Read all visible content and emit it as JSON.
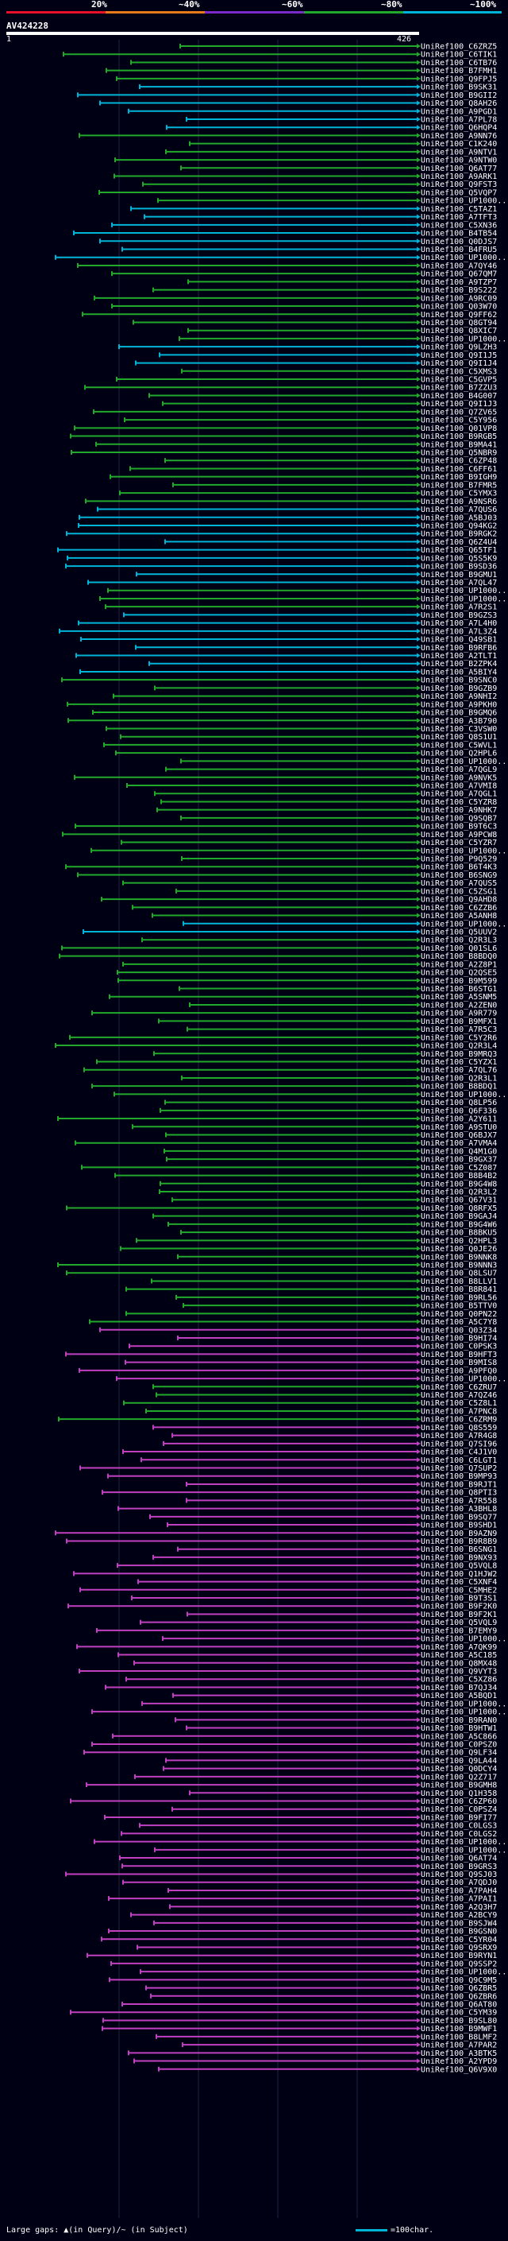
{
  "header": {
    "scale_labels": [
      "20%",
      "~40%",
      "~60%",
      "~80%",
      "~100%"
    ],
    "scale_colors": [
      "#e8102a",
      "#e87a1a",
      "#7a2ac8",
      "#22a82a",
      "#00b4d8"
    ],
    "sequence_id": "AV424228",
    "query_start": "1",
    "query_end": "426"
  },
  "legend": {
    "gaps_text": "Large gaps: ▲(in Query)/~ (in Subject)",
    "scale_text": "=100char."
  },
  "hits": [
    "UniRef100_C6ZRZ5",
    "UniRef100_C6TIK1",
    "UniRef100_C6TB76",
    "UniRef100_B7FMH1",
    "UniRef100_Q9FPJ5",
    "UniRef100_B9SK31",
    "UniRef100_B9GII2",
    "UniRef100_Q8AH26",
    "UniRef100_A9PGD1",
    "UniRef100_A7PL78",
    "UniRef100_Q6HQP4",
    "UniRef100_A9NN76",
    "UniRef100_C1K240",
    "UniRef100_A9NTV1",
    "UniRef100_A9NTW0",
    "UniRef100_Q6AT77",
    "UniRef100_A9ARK1",
    "UniRef100_Q9FST3",
    "UniRef100_Q5VQP7",
    "UniRef100_UP1000...",
    "UniRef100_C5TAZ1",
    "UniRef100_A7TFT3",
    "UniRef100_C5XN36",
    "UniRef100_B4TB54",
    "UniRef100_Q0DJS7",
    "UniRef100_B4FRU5",
    "UniRef100_UP1000...",
    "UniRef100_A7QY46",
    "UniRef100_Q67QM7",
    "UniRef100_A9TZP7",
    "UniRef100_B9S222",
    "UniRef100_A9RC09",
    "UniRef100_Q03W70",
    "UniRef100_Q9FF62",
    "UniRef100_Q8GT94",
    "UniRef100_Q8XIC7",
    "UniRef100_UP1000...",
    "UniRef100_Q9LZH3",
    "UniRef100_Q9I1J5",
    "UniRef100_Q9I1J4",
    "UniRef100_C5XMS3",
    "UniRef100_C5GVP5",
    "UniRef100_B7ZZU3",
    "UniRef100_B4G007",
    "UniRef100_Q9I1J3",
    "UniRef100_Q7ZV65",
    "UniRef100_C5Y956",
    "UniRef100_Q01VP8",
    "UniRef100_B9RGB5",
    "UniRef100_B9MA41",
    "UniRef100_Q5NBR9",
    "UniRef100_C6ZP48",
    "UniRef100_C6FF61",
    "UniRef100_B9IGH9",
    "UniRef100_B7FMR5",
    "UniRef100_C5YMX3",
    "UniRef100_A9NSR6",
    "UniRef100_A7QUS6",
    "UniRef100_A5BJ03",
    "UniRef100_Q94KG2",
    "UniRef100_B9RGK2",
    "UniRef100_Q6Z4U4",
    "UniRef100_Q65TF1",
    "UniRef100_Q5S5K9",
    "UniRef100_B9SD36",
    "UniRef100_B9GMU1",
    "UniRef100_A7QL47",
    "UniRef100_UP1000...",
    "UniRef100_UP1000...",
    "UniRef100_A7R2S1",
    "UniRef100_B9GZS3",
    "UniRef100_A7L4H0",
    "UniRef100_A7L3Z4",
    "UniRef100_Q49SB1",
    "UniRef100_B9RFB6",
    "UniRef100_A2TLT1",
    "UniRef100_B2ZPK4",
    "UniRef100_A5BIY4",
    "UniRef100_B9SNC0",
    "UniRef100_B9GZB9",
    "UniRef100_A9NHI2",
    "UniRef100_A9PKH0",
    "UniRef100_B9GMQ6",
    "UniRef100_A3B790",
    "UniRef100_C3VSW0",
    "UniRef100_Q8S1U1",
    "UniRef100_C5WVL1",
    "UniRef100_Q2HPL6",
    "UniRef100_UP1000...",
    "UniRef100_A7QGL9",
    "UniRef100_A9NVK5",
    "UniRef100_A7VMI8",
    "UniRef100_A7QGL1",
    "UniRef100_C5YZR8",
    "UniRef100_A9NHK7",
    "UniRef100_Q9SQB7",
    "UniRef100_B9T6C3",
    "UniRef100_A9PCW8",
    "UniRef100_C5YZR7",
    "UniRef100_UP1000...",
    "UniRef100_P9Q529",
    "UniRef100_B6T4K3",
    "UniRef100_B6SNG9",
    "UniRef100_A7QUS5",
    "UniRef100_C5ZSG1",
    "UniRef100_Q9AHD8",
    "UniRef100_C6ZZB6",
    "UniRef100_A5ANH8",
    "UniRef100_UP1000...",
    "UniRef100_Q5UUV2",
    "UniRef100_Q2R3L3",
    "UniRef100_Q01SL6",
    "UniRef100_B8BDQ0",
    "UniRef100_A2Z8P1",
    "UniRef100_Q2QSE5",
    "UniRef100_B9M599",
    "UniRef100_B6STG1",
    "UniRef100_A5SNM5",
    "UniRef100_A2ZEN0",
    "UniRef100_A9R779",
    "UniRef100_B9MFX1",
    "UniRef100_A7R5C3",
    "UniRef100_C5Y2R6",
    "UniRef100_Q2R3L4",
    "UniRef100_B9MRQ3",
    "UniRef100_C5YZX1",
    "UniRef100_A7QL76",
    "UniRef100_Q2R3L1",
    "UniRef100_B8BDQ1",
    "UniRef100_UP1000...",
    "UniRef100_Q8LP56",
    "UniRef100_Q6F336",
    "UniRef100_A2Y611",
    "UniRef100_A9STU0",
    "UniRef100_Q6BJX7",
    "UniRef100_A7VMA4",
    "UniRef100_Q4M1G0",
    "UniRef100_B9GX37",
    "UniRef100_C5Z087",
    "UniRef100_B8B4B2",
    "UniRef100_B9G4W8",
    "UniRef100_Q2R3L2",
    "UniRef100_Q67V31",
    "UniRef100_Q8RFX5",
    "UniRef100_B9GAJ4",
    "UniRef100_B9G4W6",
    "UniRef100_B8BKU5",
    "UniRef100_Q2HPL3",
    "UniRef100_Q0JE26",
    "UniRef100_B9NNK8",
    "UniRef100_B9NNN3",
    "UniRef100_Q8LSU7",
    "UniRef100_B8LLV1",
    "UniRef100_B8R841",
    "UniRef100_B9RL56",
    "UniRef100_B5TTV0",
    "UniRef100_Q0PN22",
    "UniRef100_A5C7Y8",
    "UniRef100_Q03Z34",
    "UniRef100_B9HI74",
    "UniRef100_C0PSK3",
    "UniRef100_B9HFT3",
    "UniRef100_B9MIS8",
    "UniRef100_A9PFQ0",
    "UniRef100_UP1000...",
    "UniRef100_C6ZRU7",
    "UniRef100_A7QZ46",
    "UniRef100_C5Z8L1",
    "UniRef100_A7PNC8",
    "UniRef100_C6ZRM9",
    "UniRef100_Q8S559",
    "UniRef100_A7R4G8",
    "UniRef100_Q7SI96",
    "UniRef100_C4J1V0",
    "UniRef100_C6LGT1",
    "UniRef100_Q7SUP2",
    "UniRef100_B9MP93",
    "UniRef100_B9RJT1",
    "UniRef100_Q8PTI3",
    "UniRef100_A7R558",
    "UniRef100_A3BHL8",
    "UniRef100_B9SQ77",
    "UniRef100_B9SHD1",
    "UniRef100_B9AZN9",
    "UniRef100_B9R8B9",
    "UniRef100_B6SNG1",
    "UniRef100_B9NX93",
    "UniRef100_Q5VQL8",
    "UniRef100_Q1HJW2",
    "UniRef100_C5XNF4",
    "UniRef100_C5MHE2",
    "UniRef100_B9T3S1",
    "UniRef100_B9F2K0",
    "UniRef100_B9F2K1",
    "UniRef100_Q5VQL9",
    "UniRef100_B7EMY9",
    "UniRef100_UP1000...",
    "UniRef100_A7QK99",
    "UniRef100_A5C185",
    "UniRef100_Q8MX48",
    "UniRef100_Q9VYT3",
    "UniRef100_C5XZ86",
    "UniRef100_B7QJ34",
    "UniRef100_A5BQD1",
    "UniRef100_UP1000...",
    "UniRef100_UP1000...",
    "UniRef100_B9RAN0",
    "UniRef100_B9HTW1",
    "UniRef100_A5C866",
    "UniRef100_C0PSZ0",
    "UniRef100_Q9LF34",
    "UniRef100_Q9LA44",
    "UniRef100_Q0DCY4",
    "UniRef100_Q2Z717",
    "UniRef100_B9GMH8",
    "UniRef100_Q1H358",
    "UniRef100_C6ZP60",
    "UniRef100_C0PSZ4",
    "UniRef100_B9FI77",
    "UniRef100_C0LGS3",
    "UniRef100_C0LGS2",
    "UniRef100_UP1000...",
    "UniRef100_UP1000...",
    "UniRef100_Q6AT74",
    "UniRef100_B9GRS3",
    "UniRef100_Q9SJ03",
    "UniRef100_A7QDJ0",
    "UniRef100_A7PAH4",
    "UniRef100_A7PAI1",
    "UniRef100_A2Q3H7",
    "UniRef100_A2BCY9",
    "UniRef100_B9SJW4",
    "UniRef100_B9GSN0",
    "UniRef100_C5YR04",
    "UniRef100_Q9SRX9",
    "UniRef100_B9RYN1",
    "UniRef100_Q9SSP2",
    "UniRef100_UP1000...",
    "UniRef100_Q9C9M5",
    "UniRef100_Q6ZBR5",
    "UniRef100_Q6ZBR6",
    "UniRef100_Q6AT80",
    "UniRef100_C5YM39",
    "UniRef100_B9SL80",
    "UniRef100_B9MWF1",
    "UniRef100_B8LMF2",
    "UniRef100_A7PAR2",
    "UniRef100_A3BTK5",
    "UniRef100_A2YPD9",
    "UniRef100_Q6V9X0"
  ]
}
